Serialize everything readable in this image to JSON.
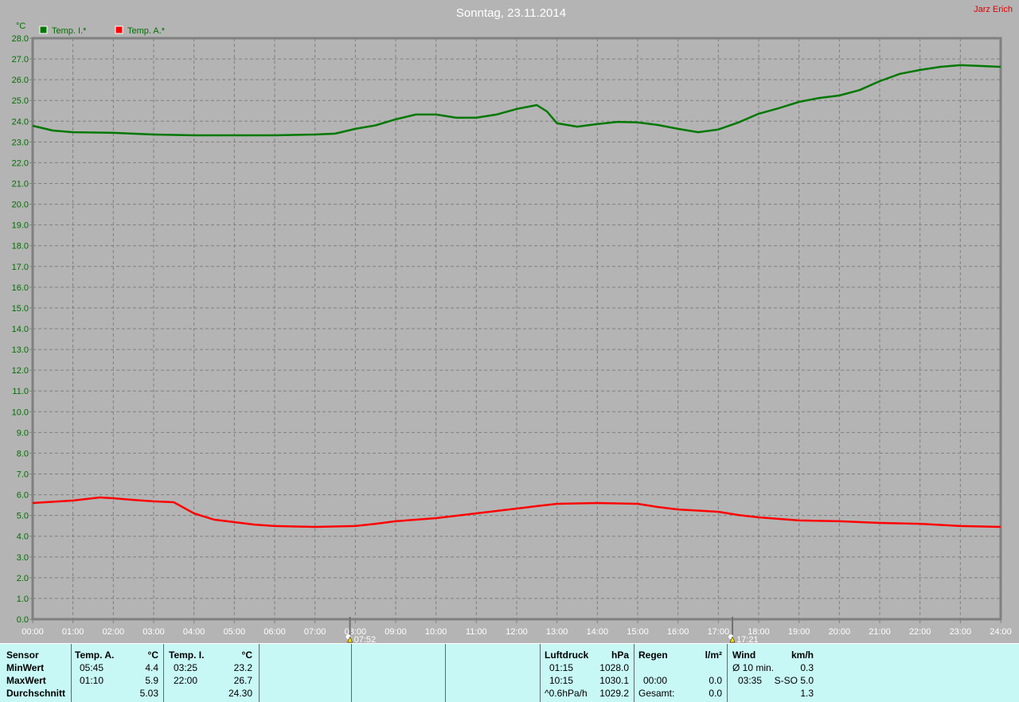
{
  "title": "Sonntag, 23.11.2014",
  "author": "Jarz Erich",
  "colors": {
    "background": "#b4b4b4",
    "grid": "#808080",
    "axis_text": "#007000",
    "temp_i": "#007800",
    "temp_a": "#ff0000",
    "panel": "#c8f8f6"
  },
  "chart_data": {
    "type": "line",
    "ylabel": "°C",
    "ylim": [
      0,
      28
    ],
    "yticks": [
      "0.0",
      "1.0",
      "2.0",
      "3.0",
      "4.0",
      "5.0",
      "6.0",
      "7.0",
      "8.0",
      "9.0",
      "10.0",
      "11.0",
      "12.0",
      "13.0",
      "14.0",
      "15.0",
      "16.0",
      "17.0",
      "18.0",
      "19.0",
      "20.0",
      "21.0",
      "22.0",
      "23.0",
      "24.0",
      "25.0",
      "26.0",
      "27.0",
      "28.0"
    ],
    "xticks": [
      "00:00",
      "01:00",
      "02:00",
      "03:00",
      "04:00",
      "05:00",
      "06:00",
      "07:00",
      "08:00",
      "09:00",
      "10:00",
      "11:00",
      "12:00",
      "13:00",
      "14:00",
      "15:00",
      "16:00",
      "17:00",
      "18:00",
      "19:00",
      "20:00",
      "21:00",
      "22:00",
      "23:00",
      "24:00"
    ],
    "xlim_hours": [
      0,
      24
    ],
    "grid": true,
    "legend_position": "top-left",
    "markers": [
      {
        "label": "07:52",
        "hour": 7.867,
        "icon": "sunrise-icon"
      },
      {
        "label": "17:21",
        "hour": 17.35,
        "icon": "sunset-icon"
      }
    ],
    "series": [
      {
        "name": "Temp. I.*",
        "color": "#007800",
        "x": [
          0,
          0.5,
          1,
          2,
          3,
          4,
          5,
          6,
          7,
          7.5,
          8,
          8.5,
          9,
          9.5,
          10,
          10.5,
          11,
          11.5,
          12,
          12.5,
          12.75,
          13,
          13.5,
          14,
          14.5,
          15,
          15.5,
          16,
          16.5,
          17,
          17.5,
          18,
          18.5,
          19,
          19.5,
          20,
          20.5,
          21,
          21.5,
          22,
          22.5,
          23,
          23.5,
          24
        ],
        "y": [
          23.78,
          23.55,
          23.47,
          23.44,
          23.36,
          23.32,
          23.32,
          23.32,
          23.36,
          23.4,
          23.63,
          23.8,
          24.09,
          24.32,
          24.32,
          24.17,
          24.17,
          24.32,
          24.59,
          24.78,
          24.47,
          23.9,
          23.74,
          23.86,
          23.97,
          23.94,
          23.82,
          23.63,
          23.47,
          23.6,
          23.94,
          24.36,
          24.63,
          24.93,
          25.12,
          25.24,
          25.5,
          25.93,
          26.28,
          26.47,
          26.62,
          26.7,
          26.66,
          26.62
        ]
      },
      {
        "name": "Temp. A.*",
        "color": "#ff0000",
        "x": [
          0,
          1,
          1.67,
          2,
          2.5,
          3,
          3.5,
          4,
          4.5,
          5,
          5.5,
          6,
          7,
          8,
          8.5,
          9,
          10,
          11,
          12,
          12.5,
          13,
          14,
          15,
          15.5,
          16,
          17,
          17.5,
          18,
          19,
          20,
          21,
          22,
          23,
          24
        ],
        "y": [
          5.6,
          5.72,
          5.87,
          5.83,
          5.75,
          5.68,
          5.64,
          5.1,
          4.8,
          4.68,
          4.56,
          4.49,
          4.45,
          4.49,
          4.6,
          4.72,
          4.87,
          5.1,
          5.33,
          5.45,
          5.56,
          5.6,
          5.56,
          5.41,
          5.29,
          5.18,
          5.02,
          4.91,
          4.76,
          4.72,
          4.64,
          4.6,
          4.49,
          4.45
        ]
      }
    ]
  },
  "table": {
    "sensor": {
      "header": "Sensor",
      "rows": [
        "MinWert",
        "MaxWert",
        "Durchschnitt"
      ]
    },
    "temp_a": {
      "header": "Temp. A.",
      "unit": "°C",
      "min_time": "05:45",
      "min": "4.4",
      "max_time": "01:10",
      "max": "5.9",
      "avg": "5.03"
    },
    "temp_i": {
      "header": "Temp. I.",
      "unit": "°C",
      "min_time": "03:25",
      "min": "23.2",
      "max_time": "22:00",
      "max": "26.7",
      "avg": "24.30"
    },
    "pressure": {
      "header": "Luftdruck",
      "unit": "hPa",
      "min_time": "01:15",
      "min": "1028.0",
      "max_time": "10:15",
      "max": "1030.1",
      "trend": "^0.6hPa/h",
      "current": "1029.2"
    },
    "rain": {
      "header": "Regen",
      "unit": "l/m²",
      "time": "00:00",
      "value": "0.0",
      "total_label": "Gesamt:",
      "total": "0.0"
    },
    "wind": {
      "header": "Wind",
      "unit": "km/h",
      "avg_label": "Ø 10 min.",
      "avg": "0.3",
      "max_time": "03:35",
      "max": "S-SO 5.0",
      "current": "1.3"
    }
  }
}
